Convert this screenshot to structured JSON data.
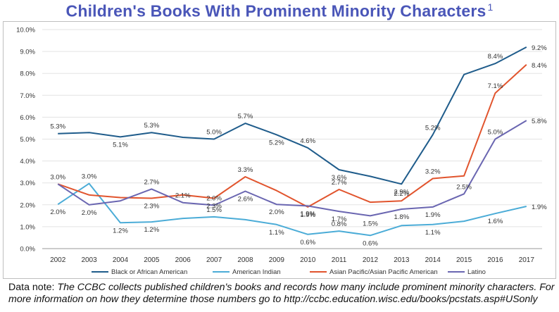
{
  "title": "Children's Books With Prominent Minority Characters",
  "title_footnote": "1",
  "note": {
    "lead": "Data note:",
    "body": "The CCBC collects published children's books and records how many  include prominent minority characters. For more information on  how they determine those numbers go to http://ccbc.education.wisc.edu/books/pcstats.asp#USonly"
  },
  "chart_data": {
    "type": "line",
    "title": "Children's Books With Prominent Minority Characters",
    "xlabel": "",
    "ylabel": "",
    "ylim": [
      0,
      10
    ],
    "y_ticks": [
      "0.0%",
      "1.0%",
      "2.0%",
      "3.0%",
      "4.0%",
      "5.0%",
      "6.0%",
      "7.0%",
      "8.0%",
      "9.0%",
      "10.0%"
    ],
    "categories": [
      "2002",
      "2003",
      "2004",
      "2005",
      "2006",
      "2007",
      "2008",
      "2009",
      "2010",
      "2011",
      "2012",
      "2013",
      "2014",
      "2015",
      "2016",
      "2017"
    ],
    "legend_position": "bottom",
    "series": [
      {
        "name": "Black or African American",
        "color": "#1f5c8b",
        "values": [
          5.25,
          5.3,
          5.1,
          5.3,
          5.08,
          5.0,
          5.72,
          5.2,
          4.6,
          3.6,
          3.3,
          2.95,
          5.2,
          7.95,
          8.45,
          9.2
        ],
        "labels": [
          "5.3%",
          "",
          "5.1%",
          "5.3%",
          "",
          "5.0%",
          "5.7%",
          "5.2%",
          "4.6%",
          "3.6%",
          "",
          "2.9%",
          "5.2%",
          "",
          "8.4%",
          "9.2%"
        ]
      },
      {
        "name": "American Indian",
        "color": "#4bacd7",
        "values": [
          2.02,
          2.97,
          1.18,
          1.22,
          1.38,
          1.45,
          1.32,
          1.1,
          0.65,
          0.8,
          0.6,
          1.05,
          1.1,
          1.25,
          1.6,
          1.93
        ],
        "labels": [
          "2.0%",
          "3.0%",
          "1.2%",
          "1.2%",
          "",
          "1.5%",
          "",
          "1.1%",
          "0.6%",
          "0.8%",
          "0.6%",
          "",
          "1.1%",
          "",
          "1.6%",
          "1.9%"
        ]
      },
      {
        "name": "Asian Pacific/Asian Pacific American",
        "color": "#e1542d",
        "values": [
          2.95,
          2.45,
          2.33,
          2.3,
          2.45,
          2.3,
          3.28,
          2.65,
          1.9,
          2.7,
          2.12,
          2.18,
          3.2,
          3.32,
          7.1,
          8.4
        ],
        "labels": [
          "3.0%",
          "",
          "",
          "2.3%",
          "",
          "2.3%",
          "3.3%",
          "",
          "1.9%",
          "2.7%",
          "",
          "2.2%",
          "3.2%",
          "",
          "7.1%",
          "8.4%"
        ]
      },
      {
        "name": "Latino",
        "color": "#6a66b1",
        "values": [
          2.95,
          2.0,
          2.18,
          2.72,
          2.1,
          1.98,
          2.62,
          2.02,
          1.95,
          1.7,
          1.5,
          1.8,
          1.9,
          2.5,
          5.0,
          5.85
        ],
        "labels": [
          "",
          "2.0%",
          "",
          "2.7%",
          "2.1%",
          "2.0%",
          "2.6%",
          "2.0%",
          "1.9%",
          "1.7%",
          "1.5%",
          "1.8%",
          "1.9%",
          "2.5%",
          "5.0%",
          "5.8%"
        ]
      }
    ]
  }
}
